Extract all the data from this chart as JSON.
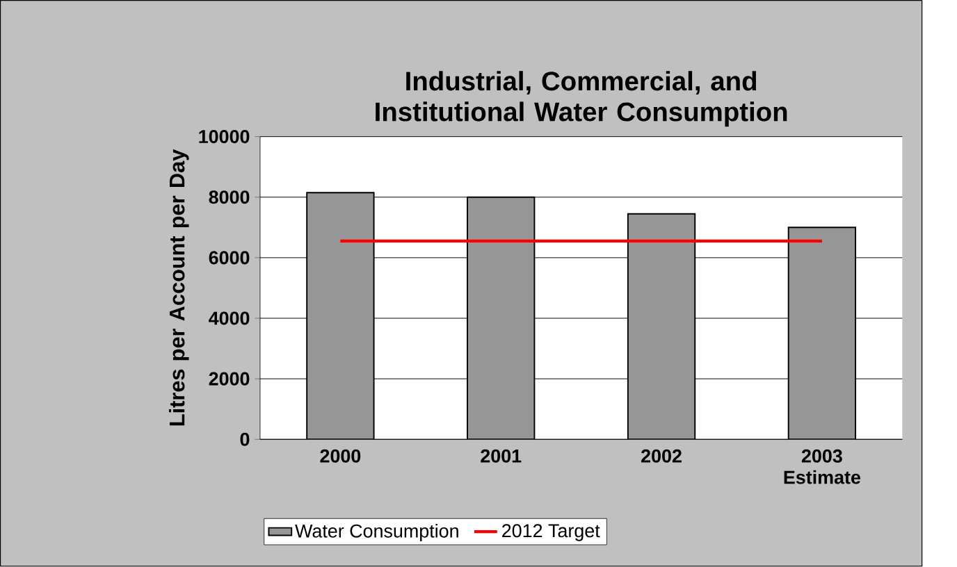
{
  "chart_data": {
    "type": "bar",
    "title": "Industrial, Commercial, and Institutional Water Consumption",
    "ylabel": "Litres per Account per Day",
    "categories": [
      "2000",
      "2001",
      "2002",
      "2003 Estimate"
    ],
    "series": [
      {
        "name": "Water Consumption",
        "color": "#969696",
        "values": [
          8150,
          8000,
          7450,
          7000
        ]
      },
      {
        "name": "2012 Target",
        "type": "line",
        "color": "#ff0000",
        "values": [
          6550,
          6550,
          6550,
          6550
        ]
      }
    ],
    "ylim": [
      0,
      10000
    ],
    "yticks": [
      0,
      2000,
      4000,
      6000,
      8000,
      10000
    ],
    "grid": "y",
    "legend": "bottom"
  }
}
